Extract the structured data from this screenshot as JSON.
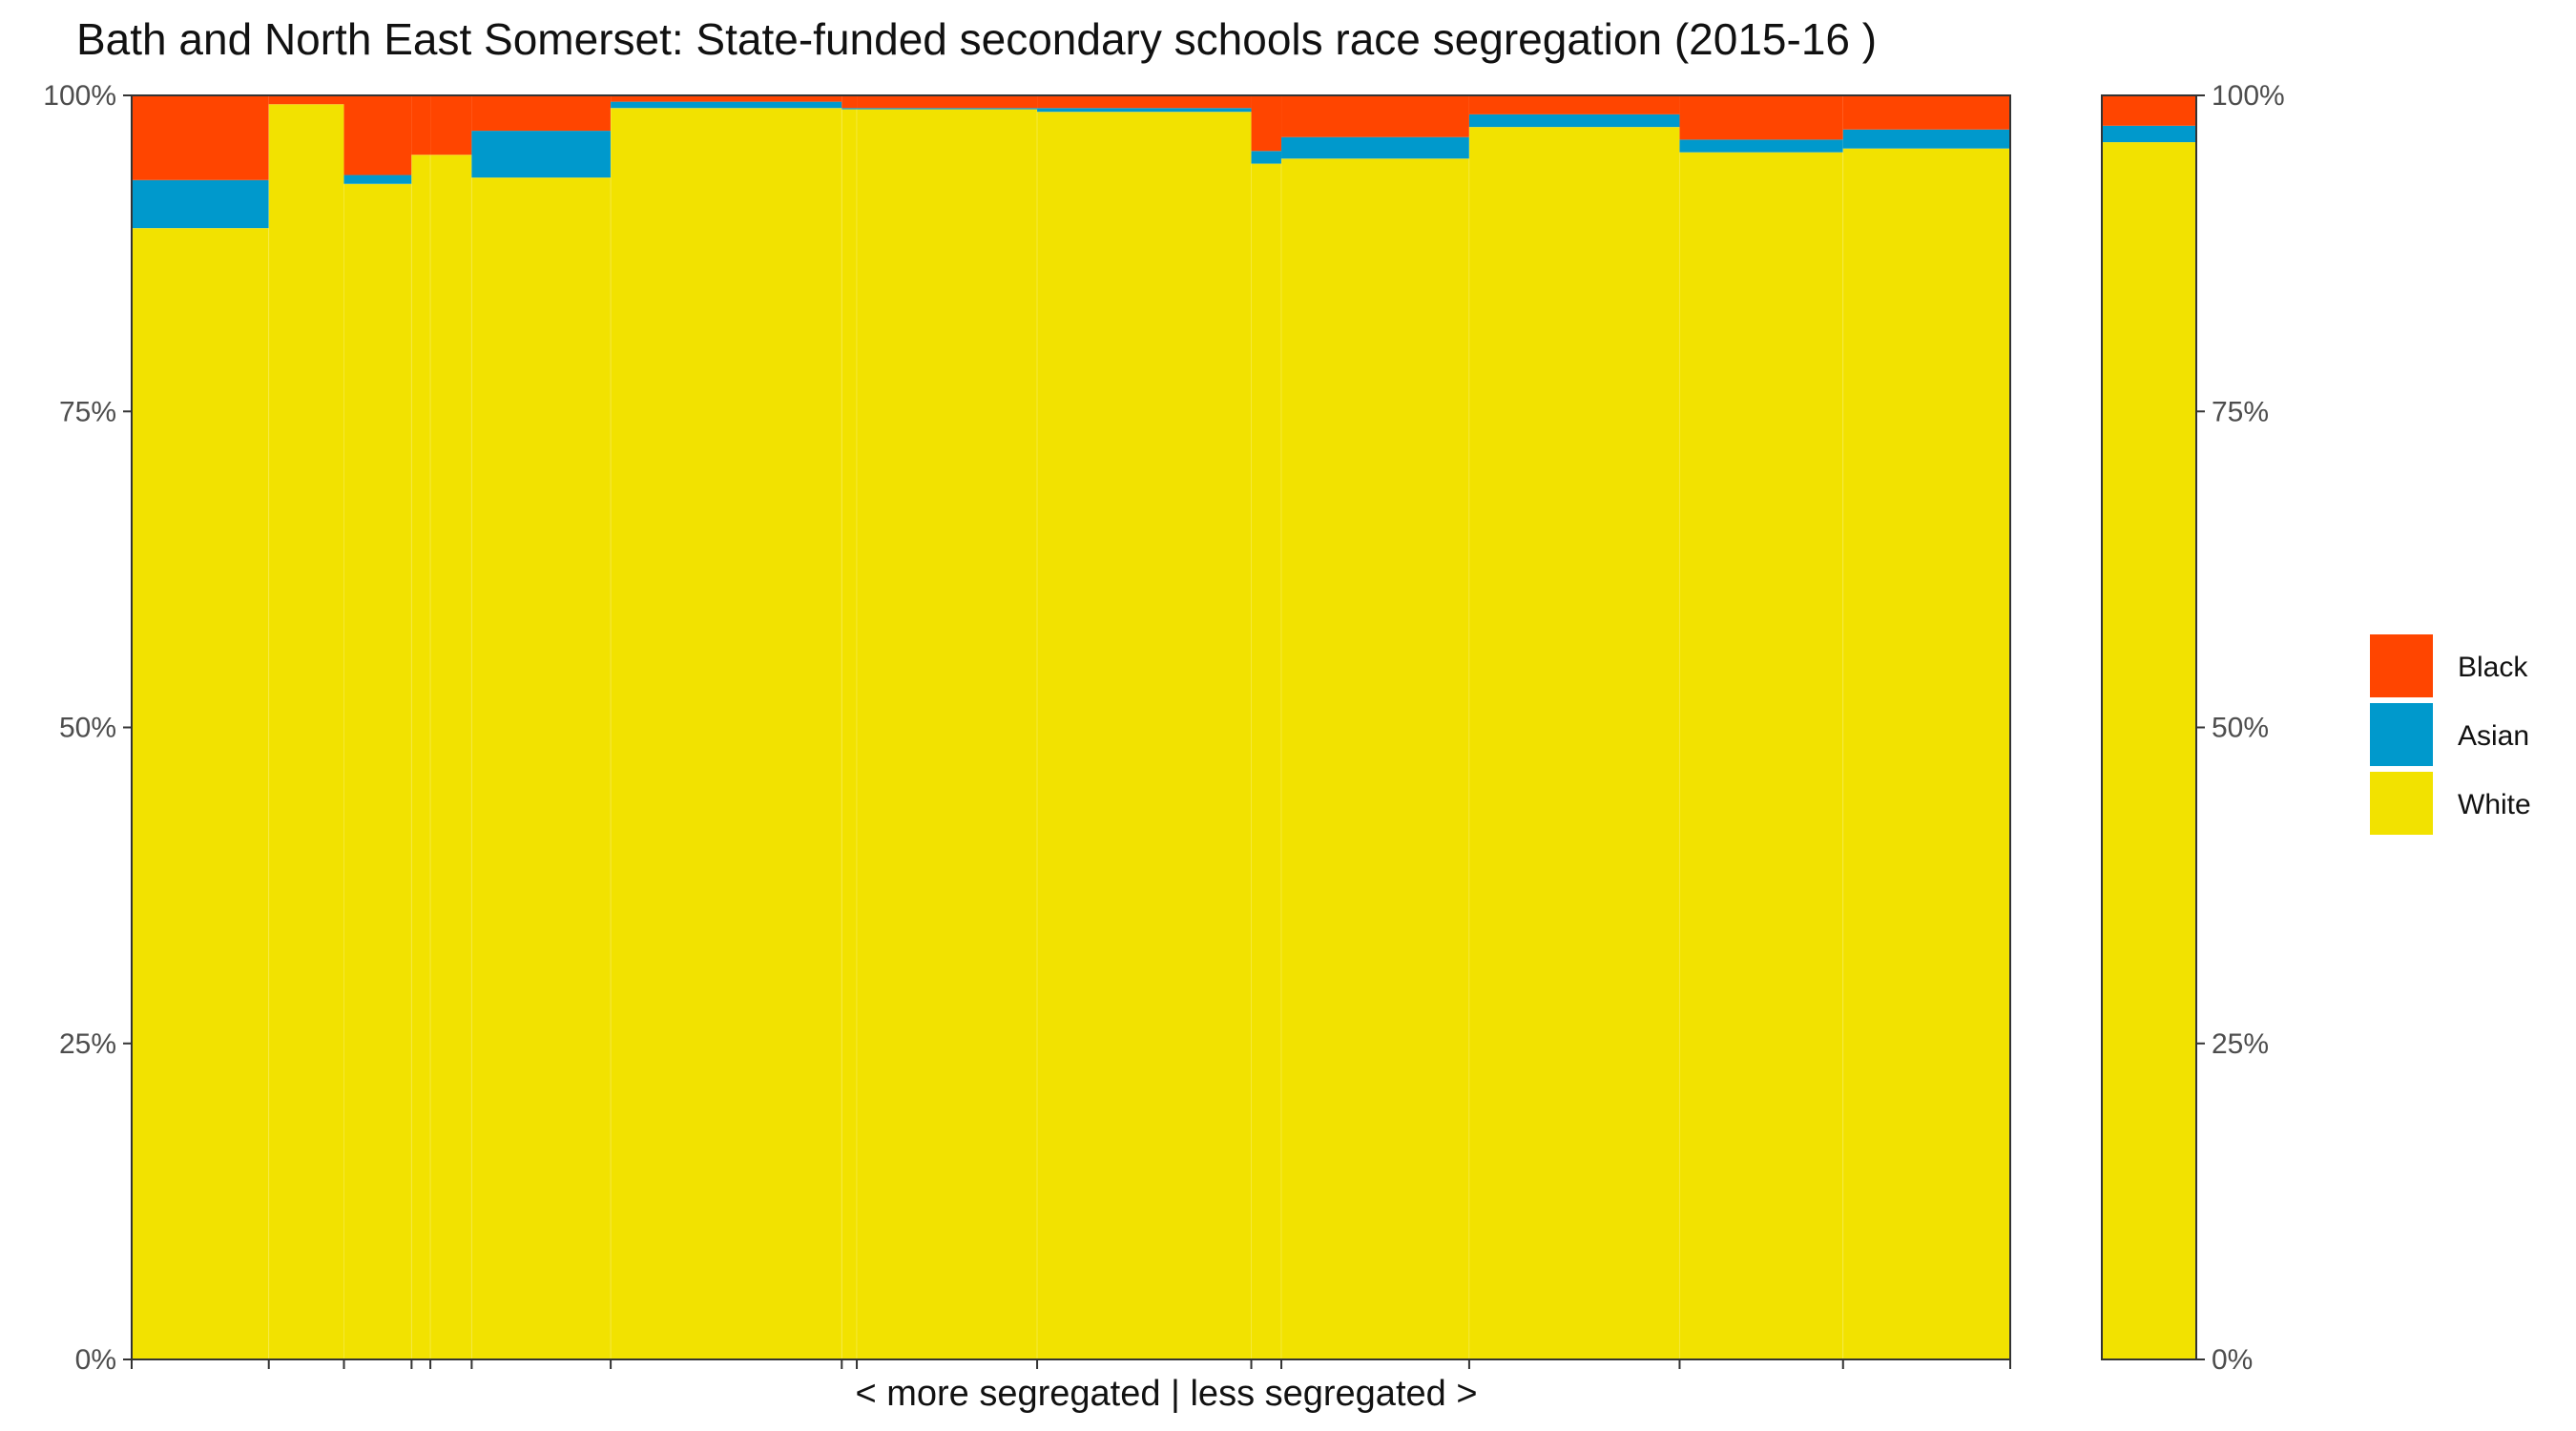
{
  "chart_data": {
    "type": "bar",
    "title": "Bath and North East Somerset: State-funded secondary schools race segregation (2015-16 )",
    "xlabel": "< more segregated | less segregated >",
    "ylabel": "",
    "ylim": [
      0,
      100
    ],
    "yticks": [
      "0%",
      "25%",
      "50%",
      "75%",
      "100%"
    ],
    "colors": {
      "Black": "#ff4500",
      "Asian": "#0099cc",
      "White": "#f2e200"
    },
    "legend": {
      "placement": "right",
      "entries": [
        "Black",
        "Asian",
        "White"
      ]
    },
    "grid": false,
    "x_range": [
      0,
      100
    ],
    "bars": [
      {
        "x0": 0.0,
        "x1": 7.3,
        "white": 89.5,
        "asian": 3.8,
        "black": 6.7
      },
      {
        "x0": 7.3,
        "x1": 11.3,
        "white": 99.3,
        "asian": 0.0,
        "black": 0.7
      },
      {
        "x0": 11.3,
        "x1": 14.9,
        "white": 93.0,
        "asian": 0.7,
        "black": 6.3
      },
      {
        "x0": 14.9,
        "x1": 15.9,
        "white": 95.3,
        "asian": 0.0,
        "black": 4.7
      },
      {
        "x0": 15.9,
        "x1": 18.1,
        "white": 95.3,
        "asian": 0.0,
        "black": 4.7
      },
      {
        "x0": 18.1,
        "x1": 25.5,
        "white": 93.5,
        "asian": 3.7,
        "black": 2.8
      },
      {
        "x0": 25.5,
        "x1": 37.8,
        "white": 99.0,
        "asian": 0.5,
        "black": 0.5
      },
      {
        "x0": 37.8,
        "x1": 38.6,
        "white": 98.9,
        "asian": 0.1,
        "black": 1.0
      },
      {
        "x0": 38.6,
        "x1": 48.2,
        "white": 98.9,
        "asian": 0.1,
        "black": 1.0
      },
      {
        "x0": 48.2,
        "x1": 59.6,
        "white": 98.7,
        "asian": 0.3,
        "black": 1.0
      },
      {
        "x0": 59.6,
        "x1": 61.2,
        "white": 94.6,
        "asian": 1.0,
        "black": 4.4
      },
      {
        "x0": 61.2,
        "x1": 71.2,
        "white": 95.0,
        "asian": 1.7,
        "black": 3.3
      },
      {
        "x0": 71.2,
        "x1": 82.4,
        "white": 97.5,
        "asian": 1.0,
        "black": 1.5
      },
      {
        "x0": 82.4,
        "x1": 91.1,
        "white": 95.5,
        "asian": 1.0,
        "black": 3.5
      },
      {
        "x0": 91.1,
        "x1": 100.0,
        "white": 95.8,
        "asian": 1.5,
        "black": 2.7
      }
    ],
    "summary_bar": {
      "white": 96.3,
      "asian": 1.3,
      "black": 2.4
    }
  }
}
